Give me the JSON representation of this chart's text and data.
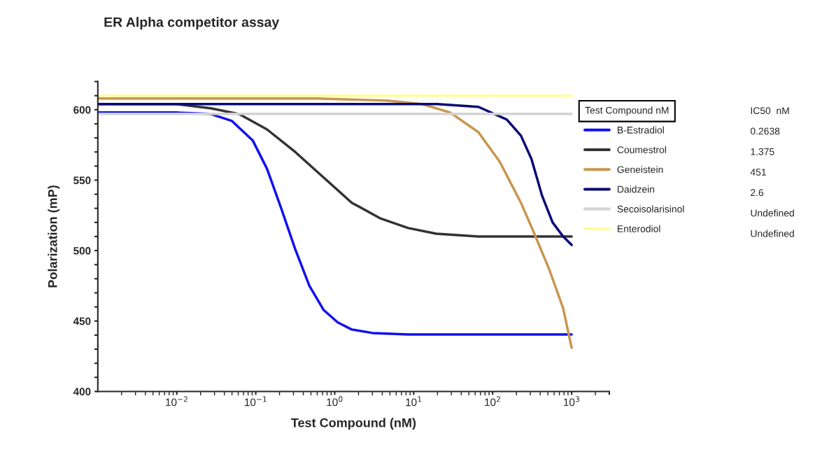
{
  "chart_data": {
    "type": "line",
    "title": "ER Alpha competitor assay",
    "xlabel": "Test Compound (nM)",
    "ylabel": "Polarization (mP)",
    "legend_title": "Test Compound nM",
    "log": "x",
    "xlim": [
      0.001,
      3000
    ],
    "ylim": [
      400,
      620
    ],
    "xticks": [
      {
        "value": 0.01,
        "label": "10$^{−2}$"
      },
      {
        "value": 0.1,
        "label": "10$^{−1}$"
      },
      {
        "value": 1,
        "label": "10$^{0}$"
      },
      {
        "value": 10,
        "label": "10$^{1}$"
      },
      {
        "value": 100,
        "label": "10$^{2}$"
      },
      {
        "value": 1000,
        "label": "10$^{3}$"
      },
      {
        "value": 3000,
        "label": null
      }
    ],
    "yticks": [
      400,
      {
        "value": 410,
        "label": null
      },
      {
        "value": 420,
        "label": null
      },
      {
        "value": 430,
        "label": null
      },
      {
        "value": 440,
        "label": null
      },
      450,
      {
        "value": 460,
        "label": null
      },
      {
        "value": 470,
        "label": null
      },
      {
        "value": 480,
        "label": null
      },
      {
        "value": 490,
        "label": null
      },
      500,
      {
        "value": 510,
        "label": null
      },
      {
        "value": 520,
        "label": null
      },
      {
        "value": 530,
        "label": null
      },
      {
        "value": 540,
        "label": null
      },
      550,
      {
        "value": 560,
        "label": null
      },
      {
        "value": 570,
        "label": null
      },
      {
        "value": 580,
        "label": null
      },
      {
        "value": 590,
        "label": null
      },
      600,
      {
        "value": 610,
        "label": null
      },
      {
        "value": 620,
        "label": null
      }
    ],
    "grid": false,
    "legend": "right",
    "marker": "none",
    "line_style": "solid",
    "series": [
      {
        "name": "B-Estradiol",
        "color": "#1010f0",
        "x": [
          0.001,
          0.01,
          0.0268,
          0.05,
          0.092,
          0.139,
          0.21,
          0.316,
          0.477,
          0.72,
          1.09,
          1.64,
          3,
          8.5,
          1000
        ],
        "values": [
          598,
          598,
          597,
          592,
          578,
          558,
          530,
          501,
          475,
          458,
          449,
          444,
          441.5,
          440.5,
          440.5
        ]
      },
      {
        "name": "Coumestrol",
        "color": "#333333",
        "x": [
          0.001,
          0.01,
          0.0268,
          0.0611,
          0.139,
          0.316,
          0.72,
          1.64,
          3.73,
          8.5,
          19.3,
          66,
          1000
        ],
        "values": [
          604,
          604,
          601,
          597,
          586,
          570,
          552,
          534,
          523,
          516,
          512,
          510,
          510
        ]
      },
      {
        "name": "Geneistein",
        "color": "#c8964f",
        "x": [
          0.001,
          0.586,
          4.58,
          12.8,
          29,
          66,
          123,
          228,
          343,
          518,
          781,
          1000
        ],
        "values": [
          608,
          608,
          606.5,
          604,
          598,
          584,
          563,
          534,
          511,
          487,
          459,
          431
        ]
      },
      {
        "name": "Daidzein",
        "color": "#0a0a78",
        "x": [
          0.001,
          20,
          66,
          151,
          228,
          310,
          422,
          574,
          781,
          1000
        ],
        "values": [
          604,
          604,
          602,
          593,
          581.6,
          565,
          539,
          520,
          510,
          504
        ]
      },
      {
        "name": "Secoisolarisinol",
        "color": "#d3d3d3",
        "x": [
          0.001,
          1000
        ],
        "values": [
          597,
          597
        ]
      },
      {
        "name": "Enterodiol",
        "color": "#ffff99",
        "x": [
          0.001,
          1000
        ],
        "values": [
          610,
          610
        ]
      }
    ],
    "annotations": [
      "IC50  nM",
      "0.2638",
      "1.375",
      "451",
      "2.6",
      "Undefined",
      "Undefined"
    ]
  }
}
